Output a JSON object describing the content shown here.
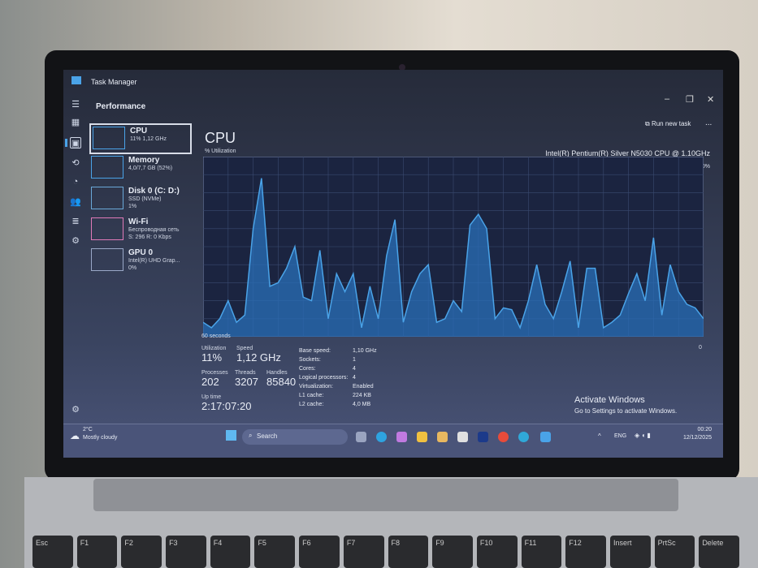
{
  "window": {
    "title": "Task Manager",
    "section": "Performance",
    "run_new_task": "Run new task",
    "more": "..."
  },
  "nav_icons": [
    "hamburger-icon",
    "processes-icon",
    "performance-icon",
    "app-history-icon",
    "startup-icon",
    "users-icon",
    "details-icon",
    "services-icon",
    "settings-icon"
  ],
  "sidebar": [
    {
      "name": "CPU",
      "sub1": "11% 1,12 GHz",
      "sub2": "",
      "color": "#4aa3e8"
    },
    {
      "name": "Memory",
      "sub1": "4,0/7,7 GB (52%)",
      "sub2": "",
      "color": "#4aa3e8"
    },
    {
      "name": "Disk 0 (C: D:)",
      "sub1": "SSD (NVMe)",
      "sub2": "1%",
      "color": "#6aa8d8"
    },
    {
      "name": "Wi-Fi",
      "sub1": "Беспроводная сеть",
      "sub2": "S: 296 R: 0 Kbps",
      "color": "#e07ab8"
    },
    {
      "name": "GPU 0",
      "sub1": "Intel(R) UHD Grap...",
      "sub2": "0%",
      "color": "#9aa8c8"
    }
  ],
  "main": {
    "heading": "CPU",
    "util_label": "% Utilization",
    "cpu_name": "Intel(R) Pentium(R) Silver N5030 CPU @ 1.10GHz",
    "max": "100%",
    "min": "0",
    "time": "60 seconds",
    "stats": {
      "utilization_l": "Utilization",
      "utilization": "11%",
      "speed_l": "Speed",
      "speed": "1,12 GHz",
      "processes_l": "Processes",
      "processes": "202",
      "threads_l": "Threads",
      "threads": "3207",
      "handles_l": "Handles",
      "handles": "85840",
      "uptime_l": "Up time",
      "uptime": "2:17:07:20"
    },
    "specs": [
      [
        "Base speed:",
        "1,10 GHz"
      ],
      [
        "Sockets:",
        "1"
      ],
      [
        "Cores:",
        "4"
      ],
      [
        "Logical processors:",
        "4"
      ],
      [
        "Virtualization:",
        "Enabled"
      ],
      [
        "L1 cache:",
        "224 KB"
      ],
      [
        "L2 cache:",
        "4,0 MB"
      ]
    ]
  },
  "activate": {
    "title": "Activate Windows",
    "sub": "Go to Settings to activate Windows."
  },
  "taskbar": {
    "temp": "2°C",
    "weather": "Mostly cloudy",
    "search": "Search",
    "lang": "ENG",
    "time": "00:20",
    "date": "12/12/2025"
  },
  "chart_data": {
    "type": "area",
    "ylim": [
      0,
      100
    ],
    "xlabel": "60 seconds",
    "ylabel": "% Utilization",
    "color": "#4aa3e8",
    "values": [
      8,
      5,
      10,
      20,
      8,
      12,
      60,
      88,
      28,
      30,
      38,
      50,
      22,
      20,
      48,
      10,
      35,
      25,
      35,
      5,
      28,
      10,
      45,
      65,
      8,
      25,
      35,
      40,
      8,
      10,
      20,
      14,
      62,
      68,
      60,
      10,
      16,
      15,
      5,
      20,
      40,
      18,
      10,
      25,
      42,
      5,
      38,
      38,
      5,
      8,
      12,
      24,
      35,
      20,
      55,
      12,
      40,
      25,
      18,
      16,
      10
    ]
  }
}
